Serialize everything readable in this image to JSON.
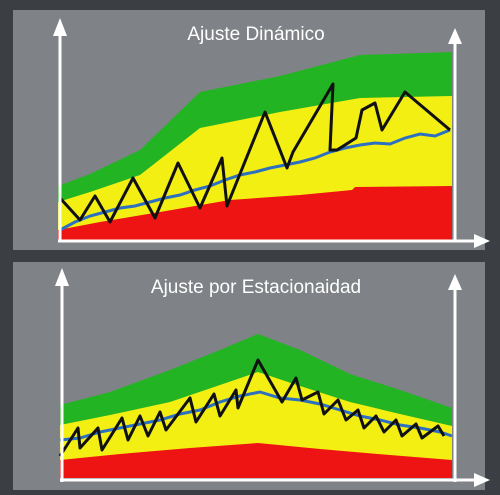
{
  "colors": {
    "background": "#3b3f44",
    "panel": "#7f8286",
    "green_band": "#22b422",
    "yellow_band": "#f4ef13",
    "red_band": "#ef1414",
    "inventory_line": "#111111",
    "average_line": "#2d6fc0",
    "axis": "#ffffff"
  },
  "top_diagram": {
    "title": "Ajuste Dinámico"
  },
  "bottom_diagram": {
    "title": "Ajuste por Estacionaidad"
  }
}
